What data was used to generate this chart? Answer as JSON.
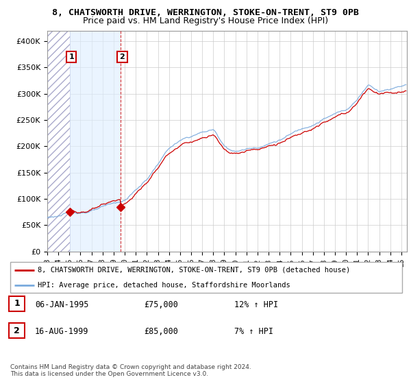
{
  "title1": "8, CHATSWORTH DRIVE, WERRINGTON, STOKE-ON-TRENT, ST9 0PB",
  "title2": "Price paid vs. HM Land Registry's House Price Index (HPI)",
  "legend_line1": "8, CHATSWORTH DRIVE, WERRINGTON, STOKE-ON-TRENT, ST9 0PB (detached house)",
  "legend_line2": "HPI: Average price, detached house, Staffordshire Moorlands",
  "transaction1_date": "06-JAN-1995",
  "transaction1_price": "£75,000",
  "transaction1_hpi": "12% ↑ HPI",
  "transaction1_x": 1995.03,
  "transaction1_y": 75000,
  "transaction2_date": "16-AUG-1999",
  "transaction2_price": "£85,000",
  "transaction2_hpi": "7% ↑ HPI",
  "transaction2_x": 1999.62,
  "transaction2_y": 85000,
  "footer": "Contains HM Land Registry data © Crown copyright and database right 2024.\nThis data is licensed under the Open Government Licence v3.0.",
  "ylim": [
    0,
    420000
  ],
  "xlim_start": 1993.0,
  "xlim_end": 2025.5,
  "hpi_color": "#7aaadd",
  "price_color": "#cc0000",
  "shade_color": "#ddeeff",
  "grid_color": "#cccccc",
  "title_fontsize": 10,
  "subtitle_fontsize": 9
}
